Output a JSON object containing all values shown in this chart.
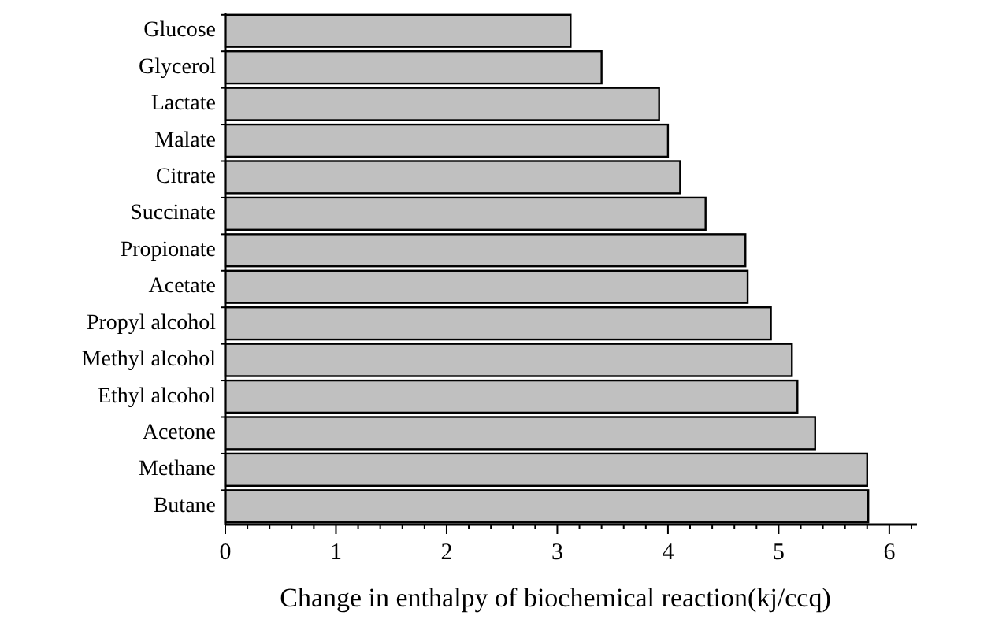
{
  "chart_data": {
    "type": "bar",
    "orientation": "horizontal",
    "xlabel": "Change in enthalpy of biochemical reaction(kj/ccq)",
    "categories": [
      "Glucose",
      "Glycerol",
      "Lactate",
      "Malate",
      "Citrate",
      "Succinate",
      "Propionate",
      "Acetate",
      "Propyl alcohol",
      "Methyl alcohol",
      "Ethyl alcohol",
      "Acetone",
      "Methane",
      "Butane"
    ],
    "values": [
      3.12,
      3.4,
      3.92,
      4.0,
      4.11,
      4.34,
      4.7,
      4.72,
      4.93,
      5.12,
      5.17,
      5.33,
      5.8,
      5.81
    ],
    "color": "#c0c0c0",
    "xlim": [
      0,
      6.25
    ],
    "xticks": [
      0,
      {
        "value": 0.2,
        "label": null
      },
      {
        "value": 0.4,
        "label": null
      },
      {
        "value": 0.6,
        "label": null
      },
      {
        "value": 0.8,
        "label": null
      },
      1,
      {
        "value": 1.2,
        "label": null
      },
      {
        "value": 1.4,
        "label": null
      },
      {
        "value": 1.6,
        "label": null
      },
      {
        "value": 1.8,
        "label": null
      },
      2,
      {
        "value": 2.2,
        "label": null
      },
      {
        "value": 2.4,
        "label": null
      },
      {
        "value": 2.6,
        "label": null
      },
      {
        "value": 2.8,
        "label": null
      },
      3,
      {
        "value": 3.2,
        "label": null
      },
      {
        "value": 3.4,
        "label": null
      },
      {
        "value": 3.6,
        "label": null
      },
      {
        "value": 3.8,
        "label": null
      },
      4,
      {
        "value": 4.2,
        "label": null
      },
      {
        "value": 4.4,
        "label": null
      },
      {
        "value": 4.6,
        "label": null
      },
      {
        "value": 4.8,
        "label": null
      },
      5,
      {
        "value": 5.2,
        "label": null
      },
      {
        "value": 5.4,
        "label": null
      },
      {
        "value": 5.6,
        "label": null
      },
      {
        "value": 5.8,
        "label": null
      },
      6,
      {
        "value": 6.2,
        "label": null
      }
    ],
    "grid": false
  }
}
